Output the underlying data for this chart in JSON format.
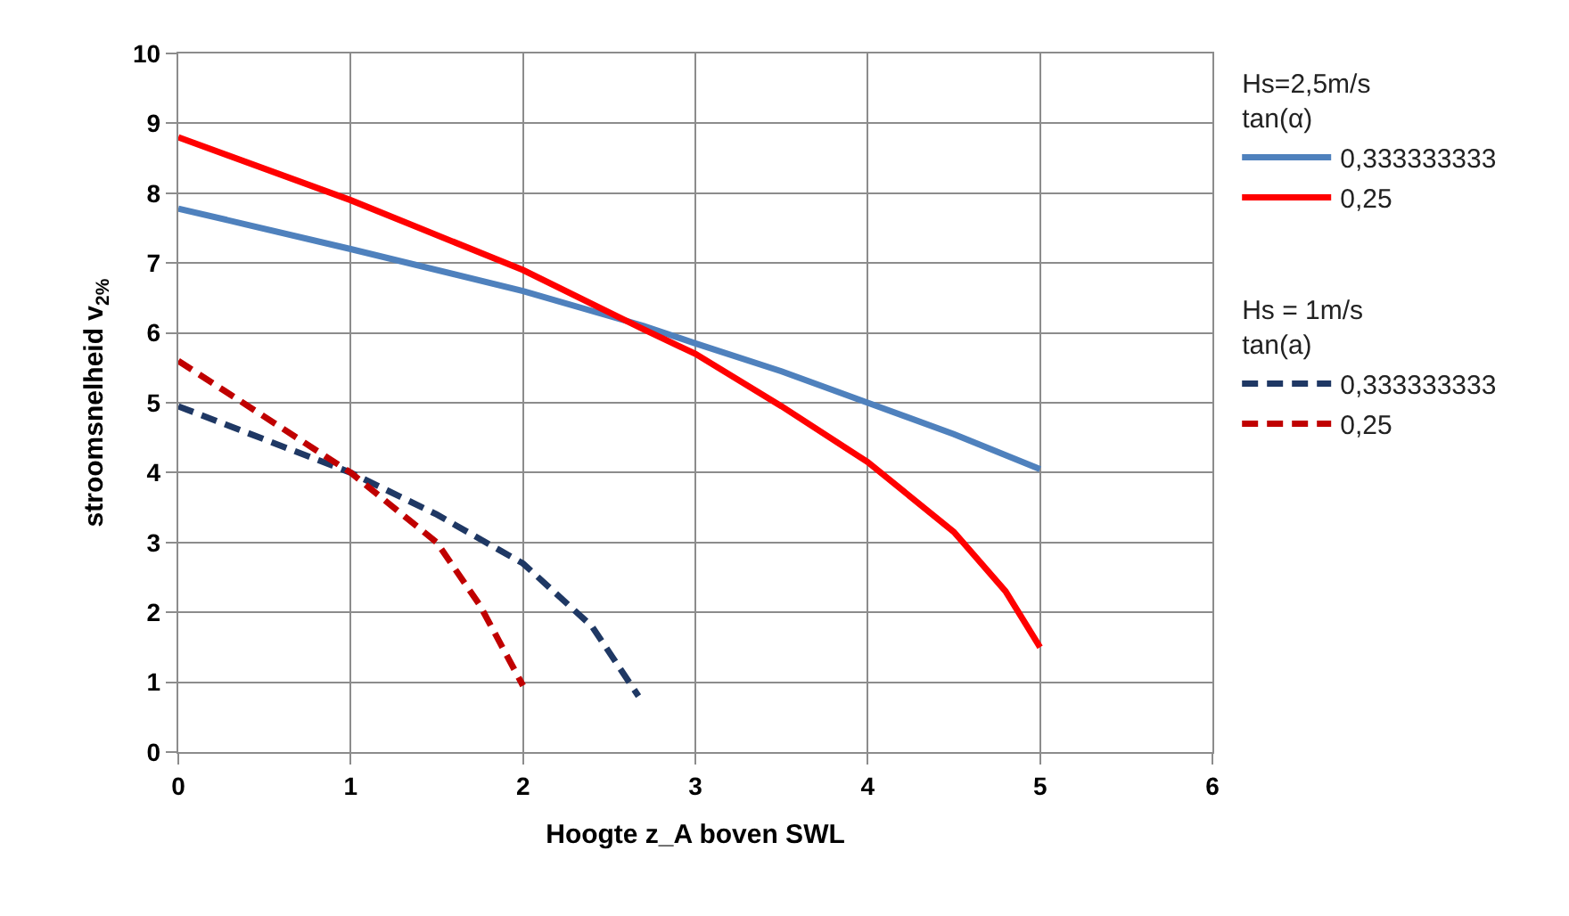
{
  "chart_data": {
    "type": "line",
    "xlabel": "Hoogte z_A boven SWL",
    "ylabel": "stroomsnelheid v$_{2%}$",
    "xlim": [
      0,
      6
    ],
    "xticks": [
      0,
      1,
      2,
      3,
      4,
      5,
      6
    ],
    "ylim": [
      0,
      10
    ],
    "yticks": [
      0,
      1,
      2,
      3,
      4,
      5,
      6,
      7,
      8,
      9,
      10
    ],
    "grid": true,
    "legend": "right",
    "marker": "none",
    "annotations": [
      "Hs=2,5m/s\ntan(α)",
      "Hs = 1m/s\ntan(a)"
    ],
    "series": [
      {
        "name": "0,333333333",
        "color": "#4f81bd",
        "line_style": "solid",
        "x": [
          0,
          1,
          2,
          2.7,
          3,
          3.5,
          4,
          4.5,
          5
        ],
        "values": [
          7.78,
          7.2,
          6.6,
          6.1,
          5.85,
          5.45,
          5.0,
          4.55,
          4.05
        ]
      },
      {
        "name": "0,25",
        "color": "#ff0000",
        "line_style": "solid",
        "x": [
          0,
          1,
          2,
          2.7,
          3,
          3.5,
          4,
          4.5,
          4.8,
          5
        ],
        "values": [
          8.8,
          7.9,
          6.9,
          6.05,
          5.7,
          4.95,
          4.15,
          3.15,
          2.3,
          1.5
        ]
      },
      {
        "name": "0,333333333",
        "color": "#1f3864",
        "line_style": "dashed",
        "x": [
          0,
          1,
          1.5,
          2,
          2.4,
          2.67
        ],
        "values": [
          4.95,
          4.0,
          3.4,
          2.7,
          1.8,
          0.8
        ]
      },
      {
        "name": "0,25",
        "color": "#c00000",
        "line_style": "dashed",
        "x": [
          0,
          1,
          1.5,
          1.75,
          2
        ],
        "values": [
          5.6,
          4.0,
          3.0,
          2.1,
          0.95
        ]
      }
    ]
  }
}
